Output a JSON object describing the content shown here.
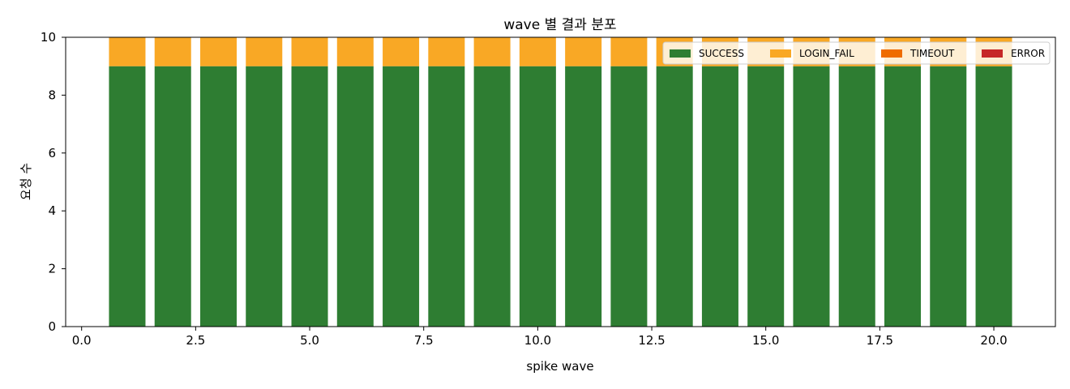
{
  "chart_data": {
    "type": "bar",
    "stacked": true,
    "title": "wave 별 결과 분포",
    "xlabel": "spike wave",
    "ylabel": "요청 수",
    "xlim": [
      -0.35,
      21.35
    ],
    "ylim": [
      0,
      10
    ],
    "xticks": [
      0.0,
      2.5,
      5.0,
      7.5,
      10.0,
      12.5,
      15.0,
      17.5,
      20.0
    ],
    "xtick_labels": [
      "0.0",
      "2.5",
      "5.0",
      "7.5",
      "10.0",
      "12.5",
      "15.0",
      "17.5",
      "20.0"
    ],
    "yticks": [
      0,
      2,
      4,
      6,
      8,
      10
    ],
    "ytick_labels": [
      "0",
      "2",
      "4",
      "6",
      "8",
      "10"
    ],
    "bar_width": 0.8,
    "legend_position": "top-right",
    "grid": false,
    "categories": [
      1,
      2,
      3,
      4,
      5,
      6,
      7,
      8,
      9,
      10,
      11,
      12,
      13,
      14,
      15,
      16,
      17,
      18,
      19,
      20
    ],
    "series": [
      {
        "name": "SUCCESS",
        "color": "#2e7d32",
        "values": [
          9,
          9,
          9,
          9,
          9,
          9,
          9,
          9,
          9,
          9,
          9,
          9,
          9,
          9,
          9,
          9,
          9,
          9,
          9,
          9
        ]
      },
      {
        "name": "LOGIN_FAIL",
        "color": "#f9a825",
        "values": [
          1,
          1,
          1,
          1,
          1,
          1,
          1,
          1,
          1,
          1,
          1,
          1,
          1,
          1,
          1,
          1,
          1,
          1,
          1,
          1
        ]
      },
      {
        "name": "TIMEOUT",
        "color": "#ef6c00",
        "values": [
          0,
          0,
          0,
          0,
          0,
          0,
          0,
          0,
          0,
          0,
          0,
          0,
          0,
          0,
          0,
          0,
          0,
          0,
          0,
          0
        ]
      },
      {
        "name": "ERROR",
        "color": "#c62828",
        "values": [
          0,
          0,
          0,
          0,
          0,
          0,
          0,
          0,
          0,
          0,
          0,
          0,
          0,
          0,
          0,
          0,
          0,
          0,
          0,
          0
        ]
      }
    ]
  }
}
